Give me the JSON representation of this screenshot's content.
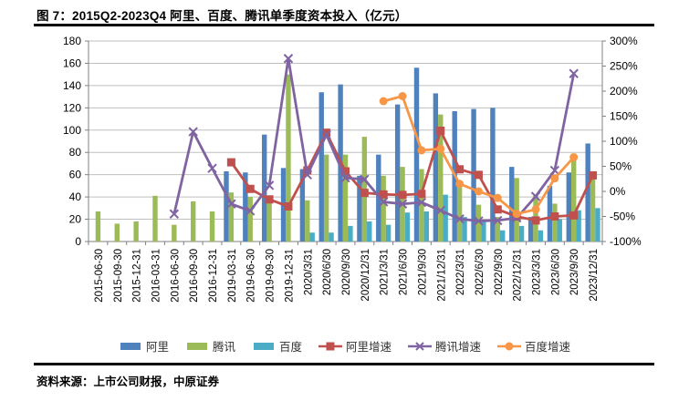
{
  "title": "图 7：2015Q2-2023Q4 阿里、百度、腾讯单季度资本投入（亿元）",
  "source_note": "资料来源：上市公司财报，中原证券",
  "colors": {
    "ali_bar": "#4F81BD",
    "tencent_bar": "#9BBB59",
    "baidu_bar": "#4BACC6",
    "ali_growth": "#C0504D",
    "tencent_growth": "#8064A2",
    "baidu_growth": "#F79646",
    "gridline": "#bfbfbf",
    "axis": "#808080",
    "tick_label": "#000000"
  },
  "legend": [
    {
      "label": "阿里",
      "type": "bar",
      "color": "#4F81BD"
    },
    {
      "label": "腾讯",
      "type": "bar",
      "color": "#9BBB59"
    },
    {
      "label": "百度",
      "type": "bar",
      "color": "#4BACC6"
    },
    {
      "label": "阿里增速",
      "type": "line",
      "marker": "square",
      "color": "#C0504D"
    },
    {
      "label": "腾讯增速",
      "type": "line",
      "marker": "x",
      "color": "#8064A2"
    },
    {
      "label": "百度增速",
      "type": "line",
      "marker": "circle",
      "color": "#F79646"
    }
  ],
  "chart_data": {
    "type": "bar+line",
    "title": "2015Q2-2023Q4 阿里、百度、腾讯单季度资本投入（亿元）",
    "grid": true,
    "legend_position": "bottom",
    "categories": [
      "2015-06-30",
      "2015-09-30",
      "2015-12-31",
      "2016-03-31",
      "2016-06-30",
      "2016-09-30",
      "2016-12-31",
      "2019-03-31",
      "2019-06-30",
      "2019-09-30",
      "2019-12-31",
      "2020/3/31",
      "2020/6/30",
      "2020/9/30",
      "2020/12/31",
      "2021/3/31",
      "2021/6/30",
      "2021/9/30",
      "2021/12/31",
      "2022/3/31",
      "2022/6/30",
      "2022/9/30",
      "2022/12/31",
      "2023/3/31",
      "2023/6/30",
      "2023/9/30",
      "2023/12/31"
    ],
    "left_axis": {
      "min": 0,
      "max": 180,
      "step": 20,
      "ticks": [
        "0",
        "20",
        "40",
        "60",
        "80",
        "100",
        "120",
        "140",
        "160",
        "180"
      ]
    },
    "right_axis": {
      "min": -100,
      "max": 300,
      "step": 50,
      "ticks": [
        "-100%",
        "-50%",
        "0%",
        "50%",
        "100%",
        "150%",
        "200%",
        "250%",
        "300%"
      ]
    },
    "bar_series": [
      {
        "name": "阿里",
        "axis": "left",
        "color": "#4F81BD",
        "values": [
          null,
          null,
          null,
          null,
          null,
          null,
          null,
          63,
          62,
          96,
          66,
          65,
          134,
          141,
          59,
          78,
          123,
          156,
          133,
          117,
          119,
          120,
          67,
          22,
          50,
          62,
          88
        ]
      },
      {
        "name": "腾讯",
        "axis": "left",
        "color": "#9BBB59",
        "values": [
          27,
          16,
          18,
          41,
          15,
          36,
          27,
          44,
          40,
          40,
          150,
          37,
          78,
          78,
          94,
          59,
          67,
          65,
          114,
          50,
          33,
          22,
          57,
          42,
          34,
          79,
          58
        ]
      },
      {
        "name": "百度",
        "axis": "left",
        "color": "#4BACC6",
        "values": [
          null,
          null,
          null,
          null,
          null,
          null,
          null,
          null,
          null,
          null,
          null,
          8,
          8,
          14,
          18,
          15,
          26,
          27,
          42,
          22,
          18,
          10,
          14,
          10,
          20,
          28,
          30
        ]
      }
    ],
    "line_series": [
      {
        "name": "阿里增速",
        "axis": "right",
        "unit": "%",
        "color": "#C0504D",
        "marker": "square",
        "values": [
          null,
          null,
          null,
          null,
          null,
          null,
          null,
          58,
          5,
          -16,
          -30,
          42,
          117,
          40,
          -3,
          -6,
          -7,
          -5,
          121,
          44,
          33,
          -36,
          -50,
          -58,
          -50,
          -48,
          32
        ]
      },
      {
        "name": "腾讯增速",
        "axis": "right",
        "unit": "%",
        "color": "#8064A2",
        "marker": "x",
        "values": [
          null,
          null,
          null,
          null,
          -45,
          119,
          46,
          -25,
          -39,
          12,
          265,
          33,
          113,
          27,
          24,
          -21,
          -25,
          -22,
          -38,
          -55,
          -59,
          -58,
          -53,
          -10,
          42,
          235,
          null
        ]
      },
      {
        "name": "百度增速",
        "axis": "right",
        "unit": "%",
        "color": "#F79646",
        "marker": "circle",
        "values": [
          null,
          null,
          null,
          null,
          null,
          null,
          null,
          null,
          null,
          null,
          null,
          null,
          null,
          null,
          null,
          180,
          190,
          82,
          85,
          15,
          0,
          -13,
          -45,
          -36,
          26,
          68,
          null
        ]
      }
    ]
  }
}
